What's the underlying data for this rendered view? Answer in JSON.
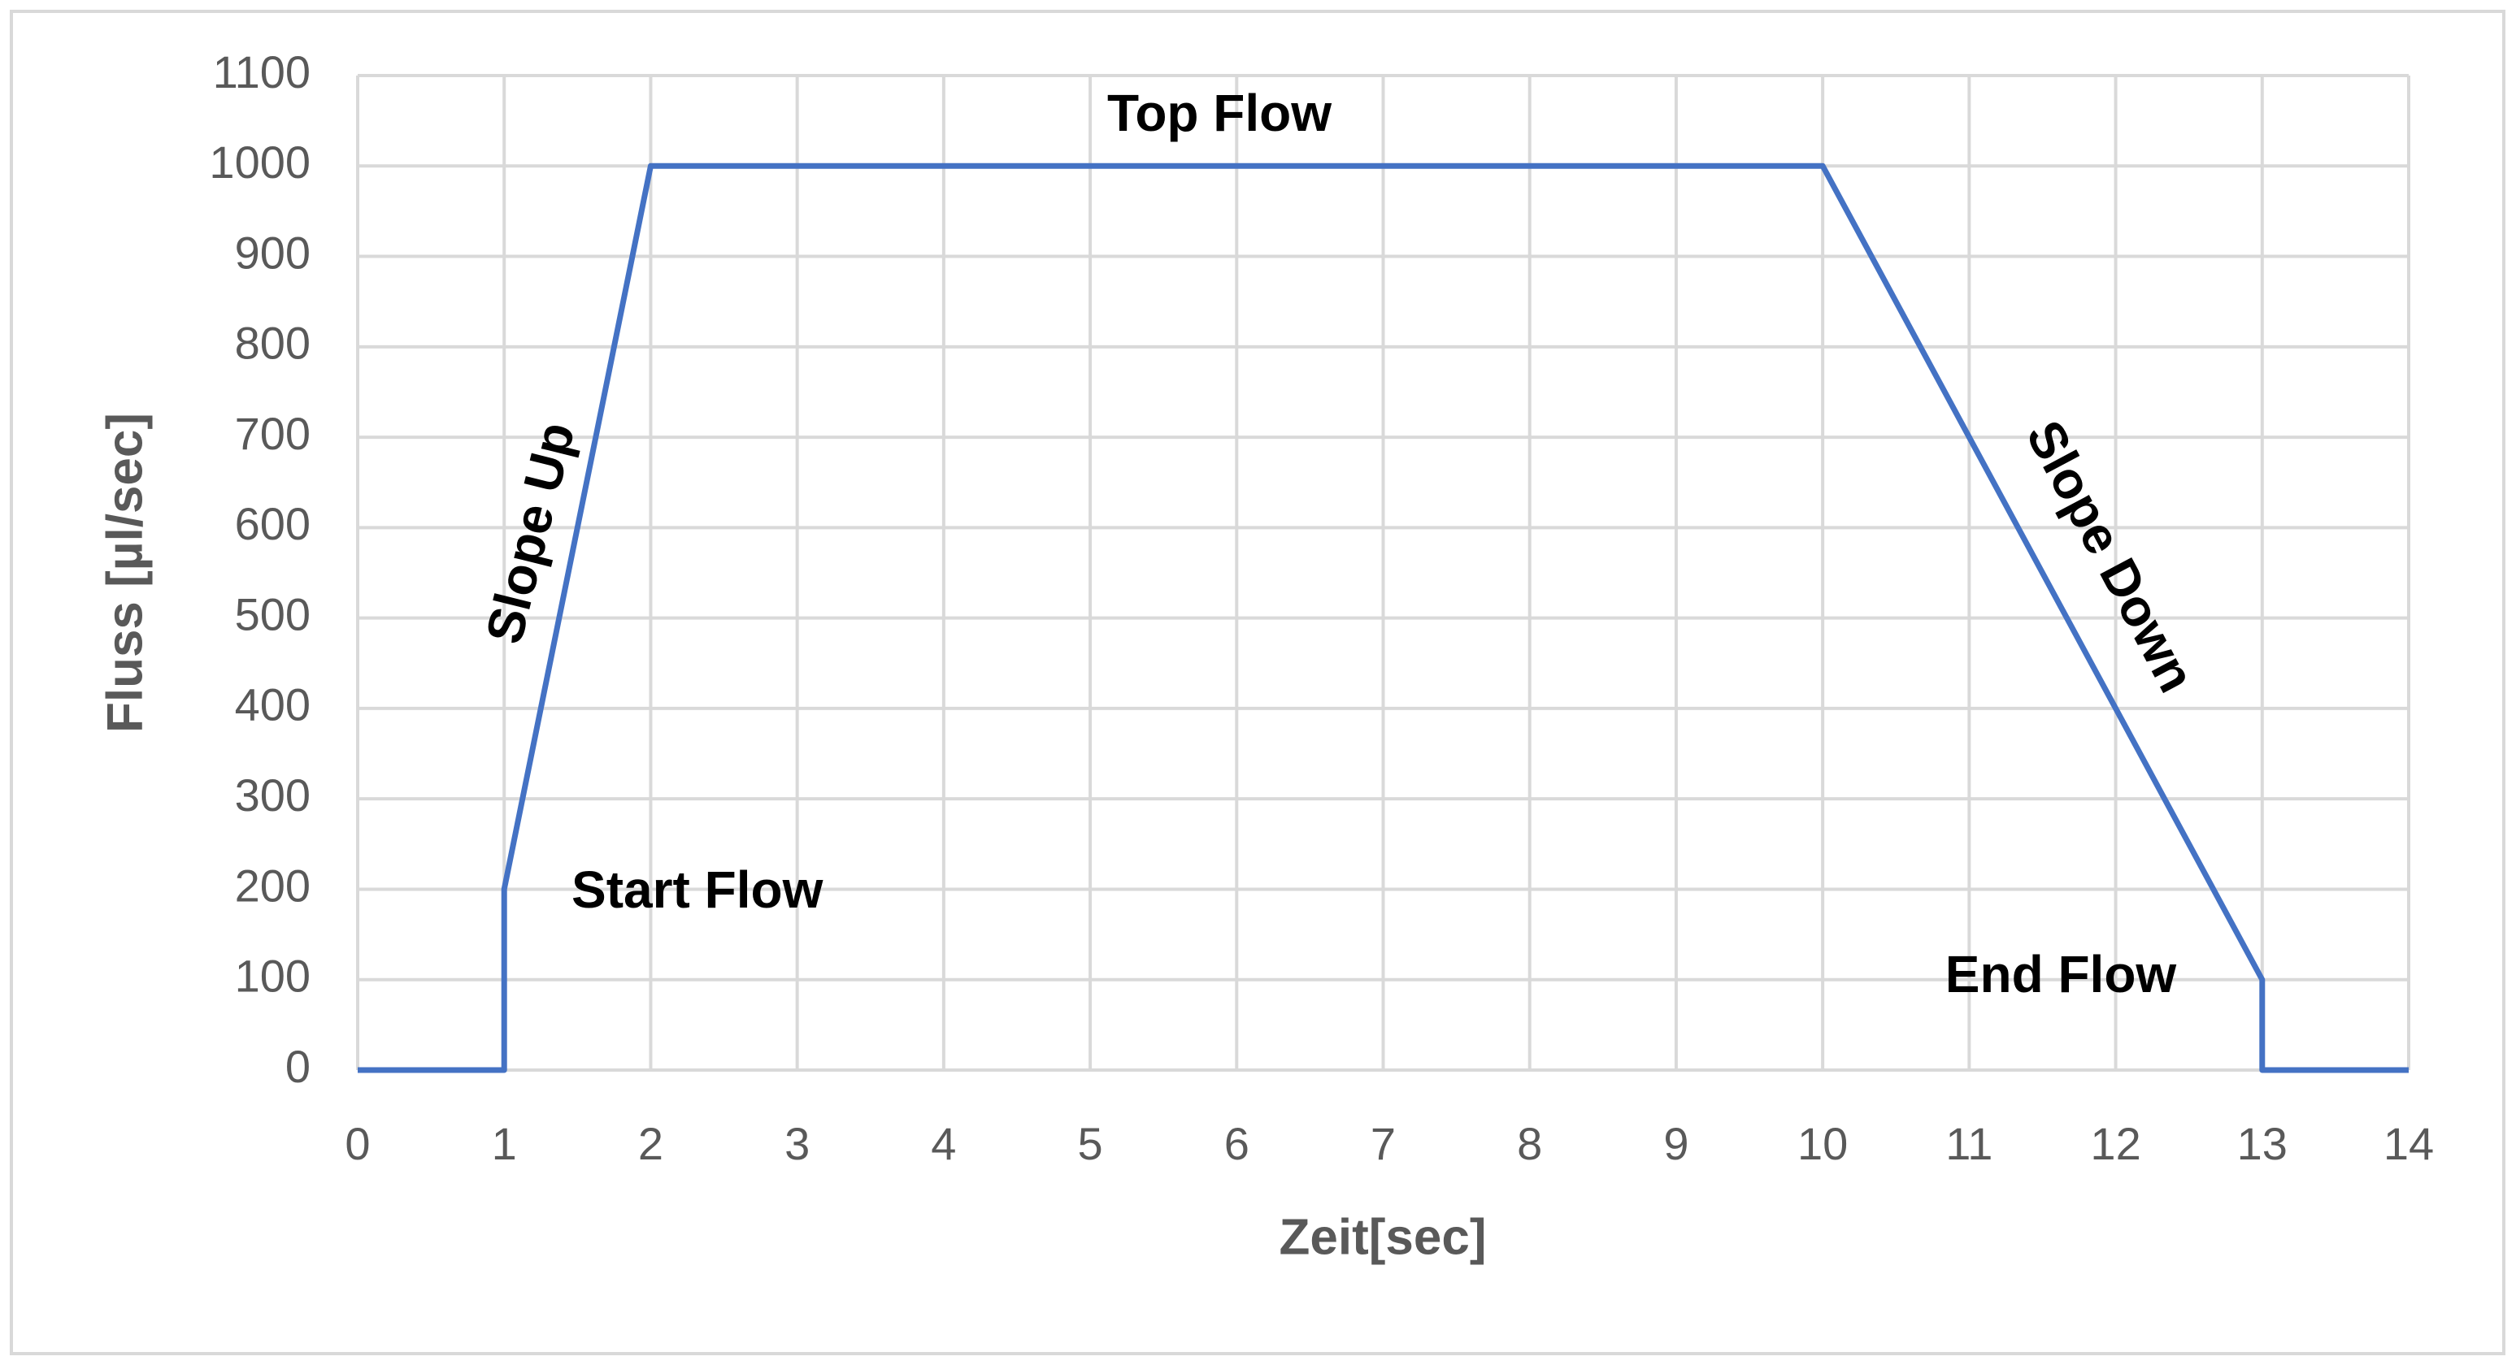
{
  "chart_data": {
    "type": "line",
    "x_label": "Zeit[sec]",
    "y_label": "Fluss [µl/sec]",
    "x": [
      0,
      1,
      1,
      2,
      10,
      13,
      13,
      14
    ],
    "series": [
      {
        "color": "#4472c4",
        "values": [
          0,
          0,
          200,
          1000,
          1000,
          100,
          0,
          0
        ]
      }
    ],
    "xlim": [
      0,
      14
    ],
    "xticks": [
      0,
      1,
      2,
      3,
      4,
      5,
      6,
      7,
      8,
      9,
      10,
      11,
      12,
      13,
      14
    ],
    "ylim": [
      0,
      1100
    ],
    "yticks": [
      0,
      100,
      200,
      300,
      400,
      500,
      600,
      700,
      800,
      900,
      1000,
      1100
    ],
    "grid": true,
    "annotations": [
      "Top Flow",
      "Slope Up",
      "Start Flow",
      "Slope Down",
      "End Flow"
    ]
  }
}
